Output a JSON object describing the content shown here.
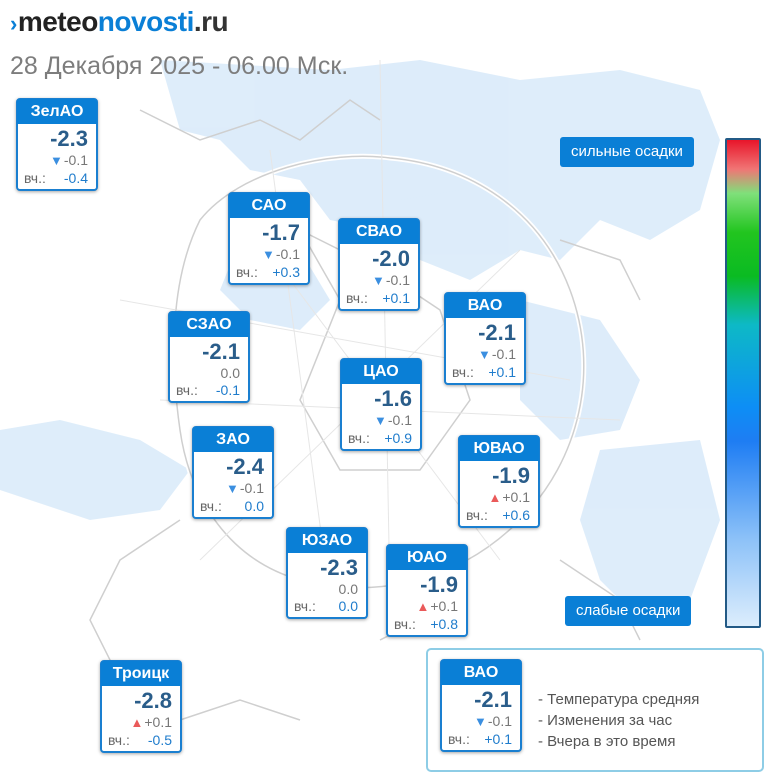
{
  "brand": {
    "mark": "›",
    "pre": "meteo",
    "mid": "novosti",
    "post": ".ru"
  },
  "subtitle": "28 Декабря 2025 - 06.00 Мск.",
  "yesterday_label": "вч.:",
  "districts": [
    {
      "name": "ЗелАО",
      "temp": "-2.3",
      "trend": "down",
      "change": "-0.1",
      "yesterday": "-0.4"
    },
    {
      "name": "САО",
      "temp": "-1.7",
      "trend": "down",
      "change": "-0.1",
      "yesterday": "+0.3"
    },
    {
      "name": "СВАО",
      "temp": "-2.0",
      "trend": "down",
      "change": "-0.1",
      "yesterday": "+0.1"
    },
    {
      "name": "ВАО",
      "temp": "-2.1",
      "trend": "down",
      "change": "-0.1",
      "yesterday": "+0.1"
    },
    {
      "name": "СЗАО",
      "temp": "-2.1",
      "trend": "none",
      "change": "0.0",
      "yesterday": "-0.1"
    },
    {
      "name": "ЦАО",
      "temp": "-1.6",
      "trend": "down",
      "change": "-0.1",
      "yesterday": "+0.9"
    },
    {
      "name": "ЗАО",
      "temp": "-2.4",
      "trend": "down",
      "change": "-0.1",
      "yesterday": "0.0"
    },
    {
      "name": "ЮВАО",
      "temp": "-1.9",
      "trend": "up",
      "change": "+0.1",
      "yesterday": "+0.6"
    },
    {
      "name": "ЮЗАО",
      "temp": "-2.3",
      "trend": "none",
      "change": "0.0",
      "yesterday": "0.0"
    },
    {
      "name": "ЮАО",
      "temp": "-1.9",
      "trend": "up",
      "change": "+0.1",
      "yesterday": "+0.8"
    },
    {
      "name": "Троицк",
      "temp": "-2.8",
      "trend": "up",
      "change": "+0.1",
      "yesterday": "-0.5"
    }
  ],
  "scale": {
    "top_label": "сильные осадки",
    "bottom_label": "слабые осадки",
    "colors": [
      "#e8152a",
      "#22c51f",
      "#1e7df3",
      "#dcedfc"
    ]
  },
  "legend": {
    "sample": {
      "name": "ВАО",
      "temp": "-2.1",
      "trend": "down",
      "change": "-0.1",
      "yesterday": "+0.1"
    },
    "lines": [
      "- Температура средняя",
      "- Изменения за час",
      "- Вчера в это время"
    ]
  },
  "colors": {
    "accent": "#0a7fd6",
    "temp_text": "#2a5d8a",
    "up_arrow": "#ea5a5a",
    "down_arrow": "#3b8fe0",
    "precip_area": "#dcecfa"
  },
  "icons": {
    "down": "triangle-down-icon",
    "up": "triangle-up-icon"
  }
}
